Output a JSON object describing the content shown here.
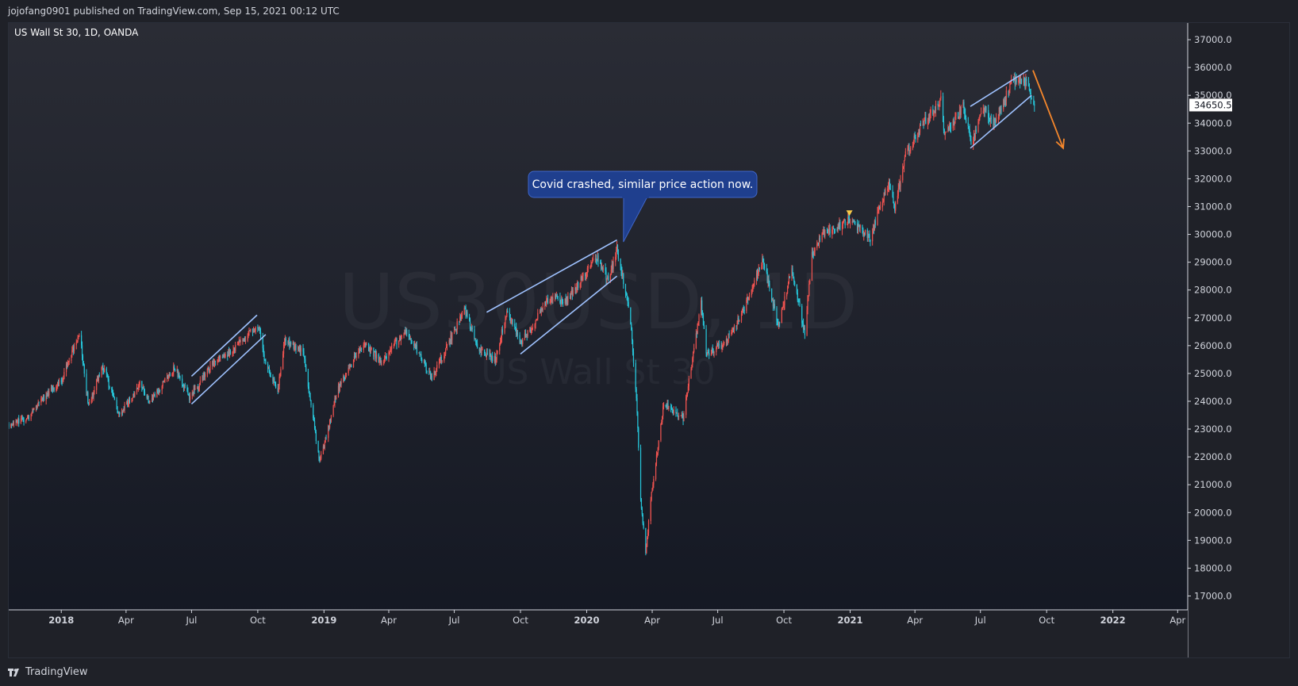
{
  "header": {
    "publisher_line": "jojofang0901 published on TradingView.com, Sep 15, 2021 00:12 UTC"
  },
  "footer": {
    "brand": "TradingView"
  },
  "colors": {
    "up": "#ef5350",
    "down": "#26c6da",
    "trendline": "#9fc2ff",
    "arrow": "#f5872c",
    "callout_bg": "#1f3f8e",
    "callout_border": "#3f66c9",
    "price_label_bg": "#ffffff"
  },
  "chart_data": {
    "type": "candlestick",
    "title": "US Wall St 30, 1D, OANDA",
    "watermark_symbol": "US30USD, 1D",
    "watermark_name": "US Wall St 30",
    "current_price_label": "34650.5",
    "ylim": [
      16500,
      37600
    ],
    "y_ticks": [
      "37000.0",
      "36000.0",
      "35000.0",
      "34000.0",
      "33000.0",
      "32000.0",
      "31000.0",
      "30000.0",
      "29000.0",
      "28000.0",
      "27000.0",
      "26000.0",
      "25000.0",
      "24000.0",
      "23000.0",
      "22000.0",
      "21000.0",
      "20000.0",
      "19000.0",
      "18000.0",
      "17000.0"
    ],
    "x_ticks": [
      {
        "label": "2018",
        "date": "2018-01-01",
        "bold": true
      },
      {
        "label": "Apr",
        "date": "2018-04-01",
        "bold": false
      },
      {
        "label": "Jul",
        "date": "2018-07-01",
        "bold": false
      },
      {
        "label": "Oct",
        "date": "2018-10-01",
        "bold": false
      },
      {
        "label": "2019",
        "date": "2019-01-01",
        "bold": true
      },
      {
        "label": "Apr",
        "date": "2019-04-01",
        "bold": false
      },
      {
        "label": "Jul",
        "date": "2019-07-01",
        "bold": false
      },
      {
        "label": "Oct",
        "date": "2019-10-01",
        "bold": false
      },
      {
        "label": "2020",
        "date": "2020-01-01",
        "bold": true
      },
      {
        "label": "Apr",
        "date": "2020-04-01",
        "bold": false
      },
      {
        "label": "Jul",
        "date": "2020-07-01",
        "bold": false
      },
      {
        "label": "Oct",
        "date": "2020-10-01",
        "bold": false
      },
      {
        "label": "2021",
        "date": "2021-01-01",
        "bold": true
      },
      {
        "label": "Apr",
        "date": "2021-04-01",
        "bold": false
      },
      {
        "label": "Jul",
        "date": "2021-07-01",
        "bold": false
      },
      {
        "label": "Oct",
        "date": "2021-10-01",
        "bold": false
      },
      {
        "label": "2022",
        "date": "2022-01-01",
        "bold": true
      },
      {
        "label": "Apr",
        "date": "2022-04-01",
        "bold": false
      }
    ],
    "xlim": [
      "2017-10-20",
      "2022-04-15"
    ],
    "price_path": [
      [
        "2017-10-20",
        23200
      ],
      [
        "2017-11-15",
        23400
      ],
      [
        "2017-12-10",
        24200
      ],
      [
        "2018-01-01",
        24700
      ],
      [
        "2018-01-26",
        26500
      ],
      [
        "2018-02-08",
        23800
      ],
      [
        "2018-02-27",
        25300
      ],
      [
        "2018-03-23",
        23500
      ],
      [
        "2018-04-20",
        24600
      ],
      [
        "2018-05-05",
        24000
      ],
      [
        "2018-06-08",
        25200
      ],
      [
        "2018-06-28",
        24100
      ],
      [
        "2018-07-31",
        25400
      ],
      [
        "2018-08-30",
        25900
      ],
      [
        "2018-10-03",
        26800
      ],
      [
        "2018-10-10",
        25400
      ],
      [
        "2018-10-29",
        24400
      ],
      [
        "2018-11-07",
        26200
      ],
      [
        "2018-12-03",
        25800
      ],
      [
        "2018-12-26",
        21800
      ],
      [
        "2019-01-20",
        24400
      ],
      [
        "2019-02-25",
        26100
      ],
      [
        "2019-03-22",
        25400
      ],
      [
        "2019-04-25",
        26600
      ],
      [
        "2019-05-31",
        24800
      ],
      [
        "2019-07-15",
        27300
      ],
      [
        "2019-08-05",
        25800
      ],
      [
        "2019-08-27",
        25500
      ],
      [
        "2019-09-12",
        27200
      ],
      [
        "2019-10-02",
        26100
      ],
      [
        "2019-11-10",
        27700
      ],
      [
        "2019-12-03",
        27600
      ],
      [
        "2020-01-16",
        29200
      ],
      [
        "2020-01-31",
        28300
      ],
      [
        "2020-02-12",
        29500
      ],
      [
        "2020-02-24",
        27900
      ],
      [
        "2020-03-02",
        26800
      ],
      [
        "2020-03-10",
        24200
      ],
      [
        "2020-03-16",
        20500
      ],
      [
        "2020-03-23",
        18600
      ],
      [
        "2020-04-01",
        20900
      ],
      [
        "2020-04-17",
        23900
      ],
      [
        "2020-05-14",
        23400
      ],
      [
        "2020-06-08",
        27500
      ],
      [
        "2020-06-15",
        25700
      ],
      [
        "2020-07-10",
        26100
      ],
      [
        "2020-08-05",
        27200
      ],
      [
        "2020-09-02",
        29100
      ],
      [
        "2020-09-23",
        26700
      ],
      [
        "2020-10-12",
        28800
      ],
      [
        "2020-10-30",
        26400
      ],
      [
        "2020-11-09",
        29300
      ],
      [
        "2020-11-25",
        30000
      ],
      [
        "2020-12-31",
        30500
      ],
      [
        "2021-01-29",
        29900
      ],
      [
        "2021-02-24",
        31900
      ],
      [
        "2021-03-04",
        30900
      ],
      [
        "2021-03-19",
        32900
      ],
      [
        "2021-04-16",
        34100
      ],
      [
        "2021-05-07",
        34800
      ],
      [
        "2021-05-12",
        33600
      ],
      [
        "2021-06-07",
        34600
      ],
      [
        "2021-06-18",
        33300
      ],
      [
        "2021-07-07",
        34600
      ],
      [
        "2021-07-19",
        33900
      ],
      [
        "2021-08-16",
        35600
      ],
      [
        "2021-09-03",
        35400
      ],
      [
        "2021-09-14",
        34650
      ]
    ],
    "trendlines": [
      {
        "p1": [
          "2018-07-01",
          24900
        ],
        "p2": [
          "2018-09-30",
          27100
        ]
      },
      {
        "p1": [
          "2018-07-01",
          23900
        ],
        "p2": [
          "2018-10-12",
          26400
        ]
      },
      {
        "p1": [
          "2019-08-15",
          27200
        ],
        "p2": [
          "2020-02-12",
          29800
        ]
      },
      {
        "p1": [
          "2019-10-01",
          25700
        ],
        "p2": [
          "2020-02-12",
          28500
        ]
      },
      {
        "p1": [
          "2021-06-17",
          34600
        ],
        "p2": [
          "2021-09-05",
          35900
        ]
      },
      {
        "p1": [
          "2021-06-17",
          33100
        ],
        "p2": [
          "2021-09-10",
          35000
        ]
      }
    ],
    "arrow": {
      "p1": [
        "2021-09-12",
        35900
      ],
      "p2": [
        "2021-10-24",
        33100
      ]
    },
    "marker": {
      "date": "2020-12-31",
      "price": 30750
    },
    "annotation": {
      "text": "Covid crashed, similar price action now.",
      "anchor": [
        "2020-02-21",
        29500
      ]
    }
  }
}
